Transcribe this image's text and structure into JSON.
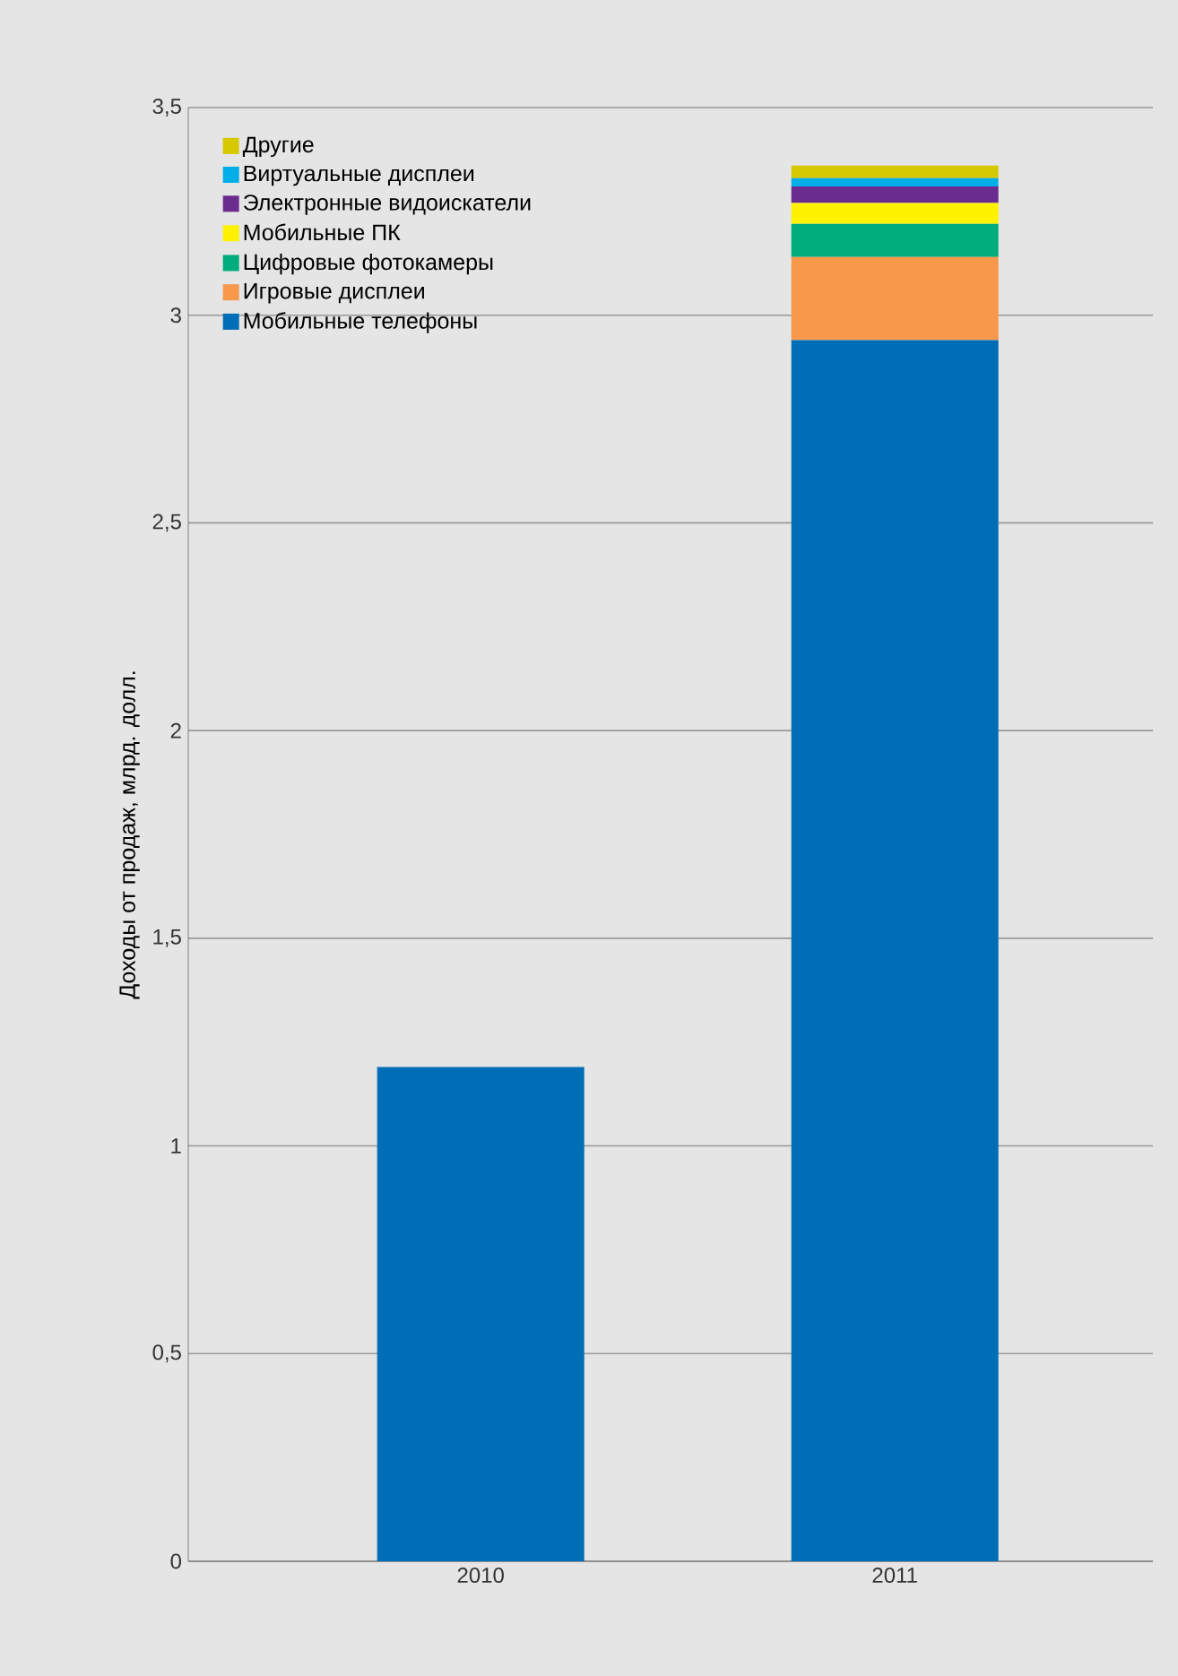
{
  "chart_data": {
    "type": "bar",
    "stacked": true,
    "ylabel": "Доходы от продаж, млрд. долл.",
    "categories": [
      "2010",
      "2011"
    ],
    "series": [
      {
        "name": "Мобильные телефоны",
        "color": "#006eb7",
        "values": [
          1.19,
          2.94
        ]
      },
      {
        "name": "Игровые дисплеи",
        "color": "#f7984a",
        "values": [
          null,
          0.2
        ]
      },
      {
        "name": "Цифровые фотокамеры",
        "color": "#00ac7c",
        "values": [
          null,
          0.08
        ]
      },
      {
        "name": "Мобильные ПК",
        "color": "#fff200",
        "values": [
          null,
          0.05
        ]
      },
      {
        "name": "Электронные видоискатели",
        "color": "#6a2c8e",
        "values": [
          null,
          0.04
        ]
      },
      {
        "name": "Виртуальные дисплеи",
        "color": "#00aee8",
        "values": [
          null,
          0.02
        ]
      },
      {
        "name": "Другие",
        "color": "#d6c800",
        "values": [
          null,
          0.03
        ]
      }
    ],
    "ylim": [
      0,
      3.5
    ],
    "yticks": [
      0,
      {
        "value": 0.5,
        "label": "0,5"
      },
      1,
      {
        "value": 1.5,
        "label": "1,5"
      },
      2,
      {
        "value": 2.5,
        "label": "2,5"
      },
      3,
      {
        "value": 3.5,
        "label": "3,5"
      }
    ],
    "grid": "y",
    "legend": "top left"
  }
}
